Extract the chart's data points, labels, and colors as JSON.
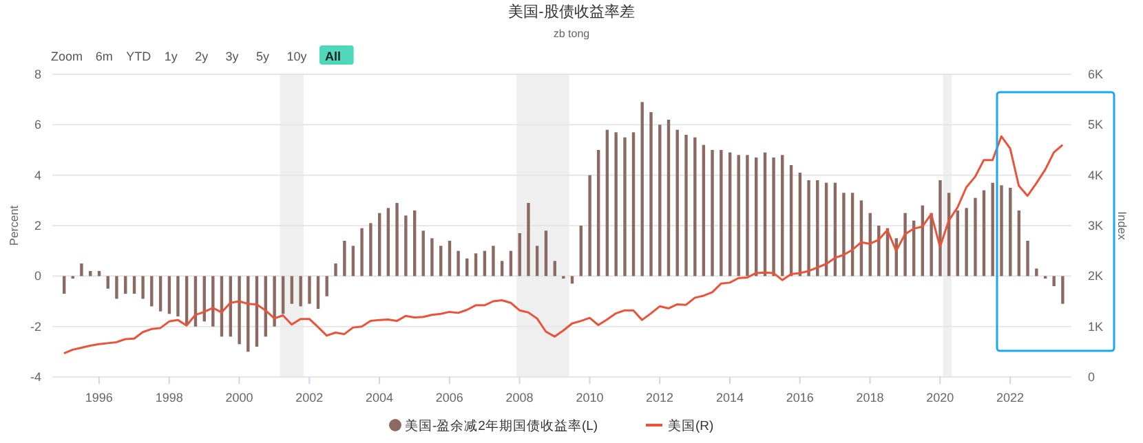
{
  "chart_data": {
    "type": "bar",
    "title": "美国-股债收益率差",
    "subtitle": "zb tong",
    "ylabel": "Percent",
    "y2label": "Index",
    "annotations": [
      "Zoom",
      "6m",
      "YTD",
      "1y",
      "2y",
      "3y",
      "5y",
      "10y",
      "All"
    ],
    "x": [
      "1995-01",
      "1995-04",
      "1995-07",
      "1995-10",
      "1996-01",
      "1996-04",
      "1996-07",
      "1996-10",
      "1997-01",
      "1997-04",
      "1997-07",
      "1997-10",
      "1998-01",
      "1998-04",
      "1998-07",
      "1998-10",
      "1999-01",
      "1999-04",
      "1999-07",
      "1999-10",
      "2000-01",
      "2000-04",
      "2000-07",
      "2000-10",
      "2001-01",
      "2001-04",
      "2001-07",
      "2001-10",
      "2002-01",
      "2002-04",
      "2002-07",
      "2002-10",
      "2003-01",
      "2003-04",
      "2003-07",
      "2003-10",
      "2004-01",
      "2004-04",
      "2004-07",
      "2004-10",
      "2005-01",
      "2005-04",
      "2005-07",
      "2005-10",
      "2006-01",
      "2006-04",
      "2006-07",
      "2006-10",
      "2007-01",
      "2007-04",
      "2007-07",
      "2007-10",
      "2008-01",
      "2008-04",
      "2008-07",
      "2008-10",
      "2009-01",
      "2009-04",
      "2009-07",
      "2009-10",
      "2010-01",
      "2010-04",
      "2010-07",
      "2010-10",
      "2011-01",
      "2011-04",
      "2011-07",
      "2011-10",
      "2012-01",
      "2012-04",
      "2012-07",
      "2012-10",
      "2013-01",
      "2013-04",
      "2013-07",
      "2013-10",
      "2014-01",
      "2014-04",
      "2014-07",
      "2014-10",
      "2015-01",
      "2015-04",
      "2015-07",
      "2015-10",
      "2016-01",
      "2016-04",
      "2016-07",
      "2016-10",
      "2017-01",
      "2017-04",
      "2017-07",
      "2017-10",
      "2018-01",
      "2018-04",
      "2018-07",
      "2018-10",
      "2019-01",
      "2019-04",
      "2019-07",
      "2019-10",
      "2020-01",
      "2020-04",
      "2020-07",
      "2020-10",
      "2021-01",
      "2021-04",
      "2021-07",
      "2021-10",
      "2022-01",
      "2022-04",
      "2022-07",
      "2022-10",
      "2023-01",
      "2023-04",
      "2023-07"
    ],
    "series": [
      {
        "name": "美国-盈余减2年期国债收益率(L)",
        "color": "#8b6b61",
        "values": [
          -0.7,
          -0.1,
          0.5,
          0.2,
          0.2,
          -0.5,
          -0.9,
          -0.7,
          -0.7,
          -0.9,
          -1.2,
          -1.4,
          -1.5,
          -1.6,
          -1.9,
          -2.0,
          -1.8,
          -2.0,
          -2.4,
          -2.4,
          -2.7,
          -3.0,
          -2.8,
          -2.4,
          -2.0,
          -1.5,
          -1.1,
          -1.2,
          -1.1,
          -1.3,
          -0.8,
          0.5,
          1.4,
          1.2,
          1.9,
          2.1,
          2.5,
          2.7,
          2.9,
          2.4,
          2.6,
          1.8,
          1.5,
          1.2,
          1.4,
          1.0,
          0.7,
          0.9,
          1.0,
          1.2,
          0.6,
          1.0,
          1.7,
          2.9,
          1.2,
          1.8,
          0.6,
          -0.1,
          -0.3,
          2.0,
          4.0,
          5.0,
          5.8,
          5.7,
          5.5,
          5.7,
          6.9,
          6.5,
          6.0,
          6.2,
          5.8,
          5.6,
          5.5,
          5.2,
          5.0,
          5.0,
          4.9,
          4.8,
          4.8,
          4.7,
          4.9,
          4.7,
          4.8,
          4.4,
          4.1,
          3.8,
          3.8,
          3.7,
          3.7,
          3.3,
          3.3,
          3.0,
          2.5,
          2.0,
          1.9,
          1.5,
          2.5,
          2.2,
          2.8,
          2.5,
          3.8,
          3.3,
          2.6,
          2.7,
          3.1,
          3.4,
          3.7,
          3.6,
          3.5,
          2.6,
          1.4,
          0.3,
          -0.1,
          -0.4,
          -1.1
        ]
      },
      {
        "name": "美国(R)",
        "type": "line",
        "axis": "y2",
        "color": "#e8543a",
        "values": [
          470,
          540,
          580,
          620,
          650,
          670,
          690,
          750,
          760,
          890,
          950,
          970,
          1100,
          1130,
          1020,
          1230,
          1290,
          1370,
          1280,
          1470,
          1500,
          1450,
          1440,
          1320,
          1160,
          1220,
          1040,
          1150,
          1150,
          990,
          820,
          880,
          850,
          980,
          1000,
          1110,
          1130,
          1140,
          1110,
          1210,
          1180,
          1190,
          1230,
          1250,
          1290,
          1270,
          1330,
          1420,
          1420,
          1500,
          1520,
          1470,
          1320,
          1280,
          1160,
          900,
          800,
          920,
          1060,
          1110,
          1170,
          1030,
          1140,
          1260,
          1320,
          1320,
          1130,
          1260,
          1400,
          1360,
          1440,
          1430,
          1570,
          1610,
          1680,
          1850,
          1870,
          1960,
          1970,
          2060,
          2070,
          2060,
          1920,
          2040,
          2060,
          2100,
          2170,
          2240,
          2360,
          2420,
          2520,
          2670,
          2640,
          2720,
          2910,
          2500,
          2830,
          2940,
          2980,
          3230,
          2580,
          3100,
          3360,
          3760,
          3970,
          4300,
          4300,
          4770,
          4530,
          3790,
          3590,
          3840,
          4110,
          4450,
          4600
        ]
      }
    ],
    "xlim": [
      "1994-09",
      "2023-10"
    ],
    "xticks": [
      "1996",
      "1998",
      "2000",
      "2002",
      "2004",
      "2006",
      "2008",
      "2010",
      "2012",
      "2014",
      "2016",
      "2018",
      "2020",
      "2022"
    ],
    "ylim": [
      -4,
      8
    ],
    "yticks": [
      -4,
      -2,
      0,
      2,
      4,
      6,
      8
    ],
    "y2lim": [
      0,
      6000
    ],
    "y2ticks": [
      0,
      {
        "value": 1000,
        "label": "1K"
      },
      {
        "value": 2000,
        "label": "2K"
      },
      {
        "value": 3000,
        "label": "3K"
      },
      {
        "value": 4000,
        "label": "4K"
      },
      {
        "value": 5000,
        "label": "5K"
      },
      {
        "value": 6000,
        "label": "6K"
      }
    ],
    "bands": [
      {
        "axis": "x",
        "from": "2001-03",
        "to": "2001-11",
        "color": "#efefef"
      },
      {
        "axis": "x",
        "from": "2007-12",
        "to": "2009-06",
        "color": "#efefef"
      },
      {
        "axis": "x",
        "from": "2020-02",
        "to": "2020-05",
        "color": "#efefef"
      }
    ],
    "grid": "y",
    "legend": "bottom"
  }
}
